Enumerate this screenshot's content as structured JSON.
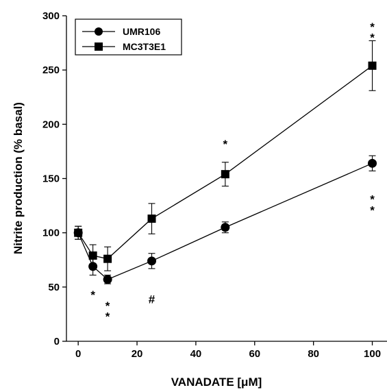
{
  "chart_data": {
    "type": "line",
    "xlabel": "VANADATE [μM]",
    "ylabel": "Nitrite production (% basal)",
    "xlim": [
      -4,
      105
    ],
    "ylim": [
      0,
      300
    ],
    "xticks": [
      0,
      20,
      40,
      60,
      80,
      100
    ],
    "yticks": [
      0,
      50,
      100,
      150,
      200,
      250,
      300
    ],
    "grid": false,
    "legend_position": "top-left",
    "series": [
      {
        "name": "UMR106",
        "marker": "circle",
        "color": "#000000",
        "x": [
          0,
          5,
          10,
          25,
          50,
          100
        ],
        "y": [
          100,
          69,
          57,
          74,
          105,
          164
        ],
        "error": [
          6,
          8,
          4,
          7,
          5,
          7
        ]
      },
      {
        "name": "MC3T3E1",
        "marker": "square",
        "color": "#000000",
        "x": [
          0,
          5,
          10,
          25,
          50,
          100
        ],
        "y": [
          100,
          79,
          76,
          113,
          154,
          254
        ],
        "error": [
          6,
          10,
          11,
          14,
          11,
          23
        ]
      }
    ],
    "annotations": [
      {
        "text": "*",
        "x": 5,
        "y": 43
      },
      {
        "text": "*",
        "x": 10,
        "y": 33
      },
      {
        "text": "*",
        "x": 10,
        "y": 23
      },
      {
        "text": "#",
        "x": 25,
        "y": 39
      },
      {
        "text": "*",
        "x": 50,
        "y": 182
      },
      {
        "text": "*",
        "x": 100,
        "y": 290
      },
      {
        "text": "*",
        "x": 100,
        "y": 280
      },
      {
        "text": "*",
        "x": 100,
        "y": 131
      },
      {
        "text": "*",
        "x": 100,
        "y": 121
      }
    ]
  }
}
